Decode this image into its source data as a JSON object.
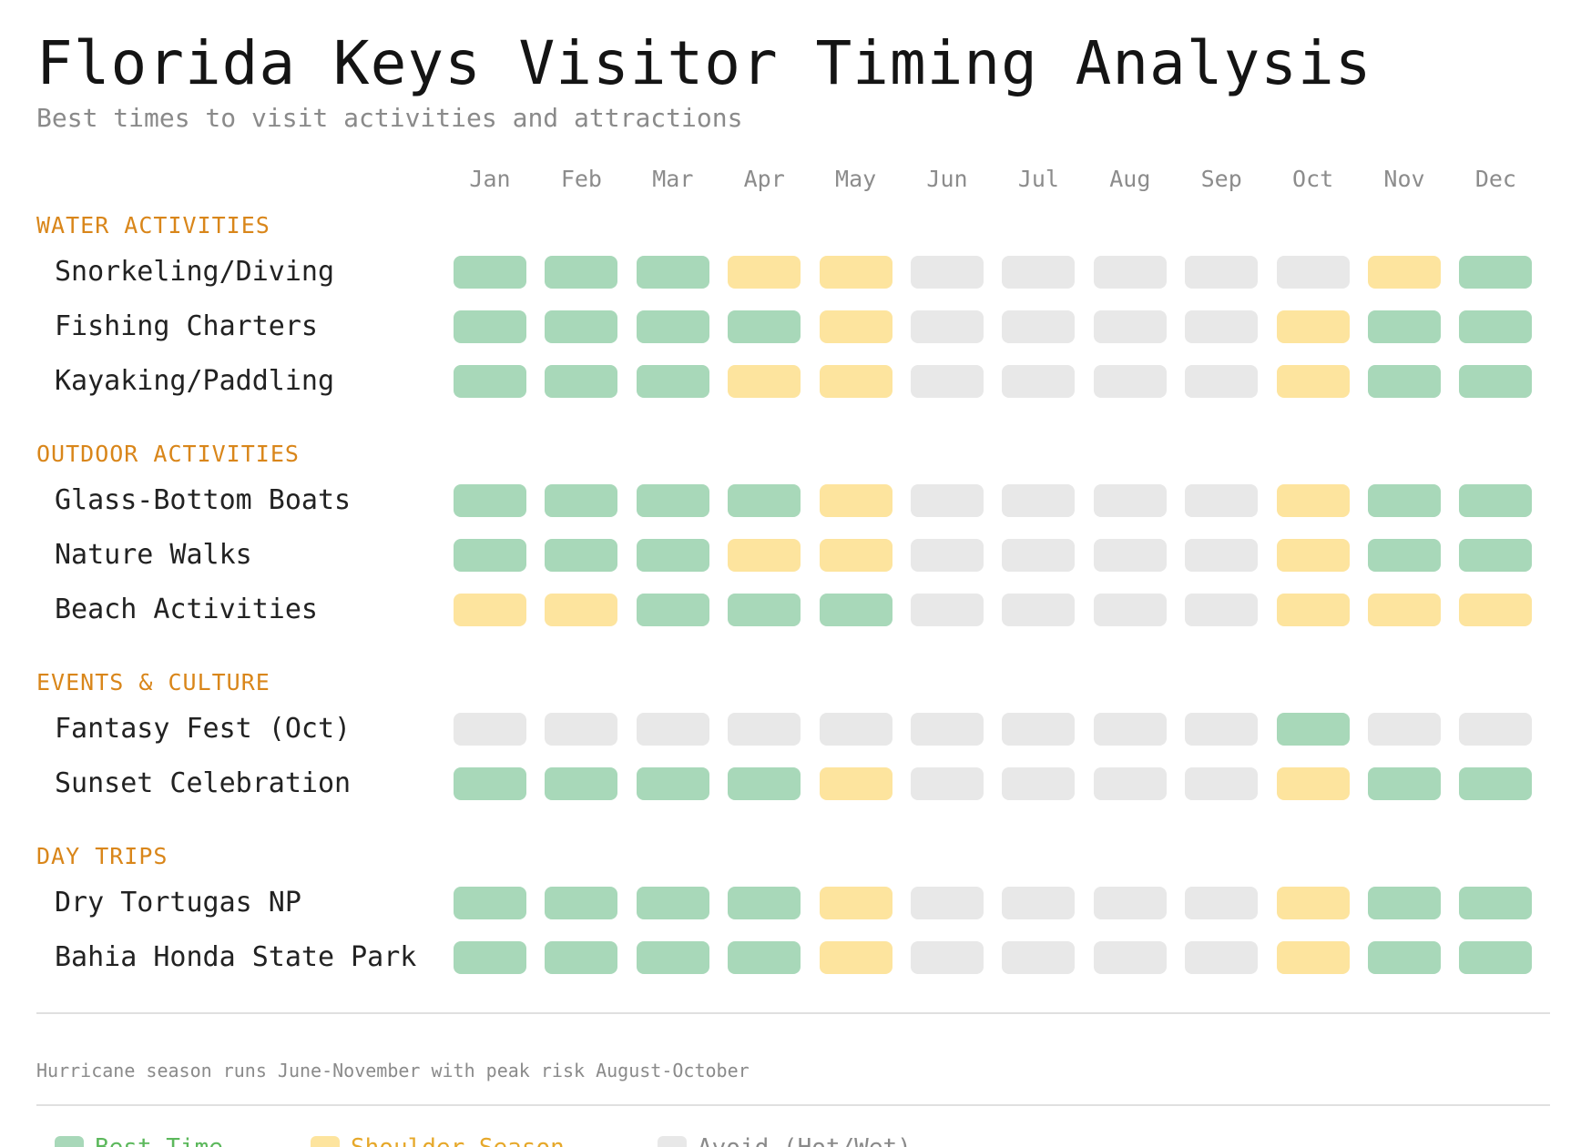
{
  "title": "Florida Keys Visitor Timing Analysis",
  "subtitle": "Best times to visit activities and attractions",
  "colors": {
    "best": "#a8d8b9",
    "shoulder": "#fde49e",
    "avoid": "#e8e8e8",
    "section": "#d9861a",
    "best_text": "#5cb85c",
    "shoulder_text": "#e6a82a",
    "avoid_text": "#8a8a8a"
  },
  "chart_data": {
    "type": "heatmap",
    "months": [
      "Jan",
      "Feb",
      "Mar",
      "Apr",
      "May",
      "Jun",
      "Jul",
      "Aug",
      "Sep",
      "Oct",
      "Nov",
      "Dec"
    ],
    "sections": [
      {
        "name": "WATER ACTIVITIES",
        "rows": [
          {
            "name": "Snorkeling/Diving",
            "values": [
              "best",
              "best",
              "best",
              "shoulder",
              "shoulder",
              "avoid",
              "avoid",
              "avoid",
              "avoid",
              "avoid",
              "shoulder",
              "best"
            ]
          },
          {
            "name": "Fishing Charters",
            "values": [
              "best",
              "best",
              "best",
              "best",
              "shoulder",
              "avoid",
              "avoid",
              "avoid",
              "avoid",
              "shoulder",
              "best",
              "best"
            ]
          },
          {
            "name": "Kayaking/Paddling",
            "values": [
              "best",
              "best",
              "best",
              "shoulder",
              "shoulder",
              "avoid",
              "avoid",
              "avoid",
              "avoid",
              "shoulder",
              "best",
              "best"
            ]
          }
        ]
      },
      {
        "name": "OUTDOOR ACTIVITIES",
        "rows": [
          {
            "name": "Glass-Bottom Boats",
            "values": [
              "best",
              "best",
              "best",
              "best",
              "shoulder",
              "avoid",
              "avoid",
              "avoid",
              "avoid",
              "shoulder",
              "best",
              "best"
            ]
          },
          {
            "name": "Nature Walks",
            "values": [
              "best",
              "best",
              "best",
              "shoulder",
              "shoulder",
              "avoid",
              "avoid",
              "avoid",
              "avoid",
              "shoulder",
              "best",
              "best"
            ]
          },
          {
            "name": "Beach Activities",
            "values": [
              "shoulder",
              "shoulder",
              "best",
              "best",
              "best",
              "avoid",
              "avoid",
              "avoid",
              "avoid",
              "shoulder",
              "shoulder",
              "shoulder"
            ]
          }
        ]
      },
      {
        "name": "EVENTS & CULTURE",
        "rows": [
          {
            "name": "Fantasy Fest (Oct)",
            "values": [
              "avoid",
              "avoid",
              "avoid",
              "avoid",
              "avoid",
              "avoid",
              "avoid",
              "avoid",
              "avoid",
              "best",
              "avoid",
              "avoid"
            ]
          },
          {
            "name": "Sunset Celebration",
            "values": [
              "best",
              "best",
              "best",
              "best",
              "shoulder",
              "avoid",
              "avoid",
              "avoid",
              "avoid",
              "shoulder",
              "best",
              "best"
            ]
          }
        ]
      },
      {
        "name": "DAY TRIPS",
        "rows": [
          {
            "name": "Dry Tortugas NP",
            "values": [
              "best",
              "best",
              "best",
              "best",
              "shoulder",
              "avoid",
              "avoid",
              "avoid",
              "avoid",
              "shoulder",
              "best",
              "best"
            ]
          },
          {
            "name": "Bahia Honda State Park",
            "values": [
              "best",
              "best",
              "best",
              "best",
              "shoulder",
              "avoid",
              "avoid",
              "avoid",
              "avoid",
              "shoulder",
              "best",
              "best"
            ]
          }
        ]
      }
    ],
    "legend": [
      {
        "key": "best",
        "label": "Best Time"
      },
      {
        "key": "shoulder",
        "label": "Shoulder Season"
      },
      {
        "key": "avoid",
        "label": "Avoid (Hot/Wet)"
      }
    ]
  },
  "note": "Hurricane season runs June-November with peak risk August-October"
}
